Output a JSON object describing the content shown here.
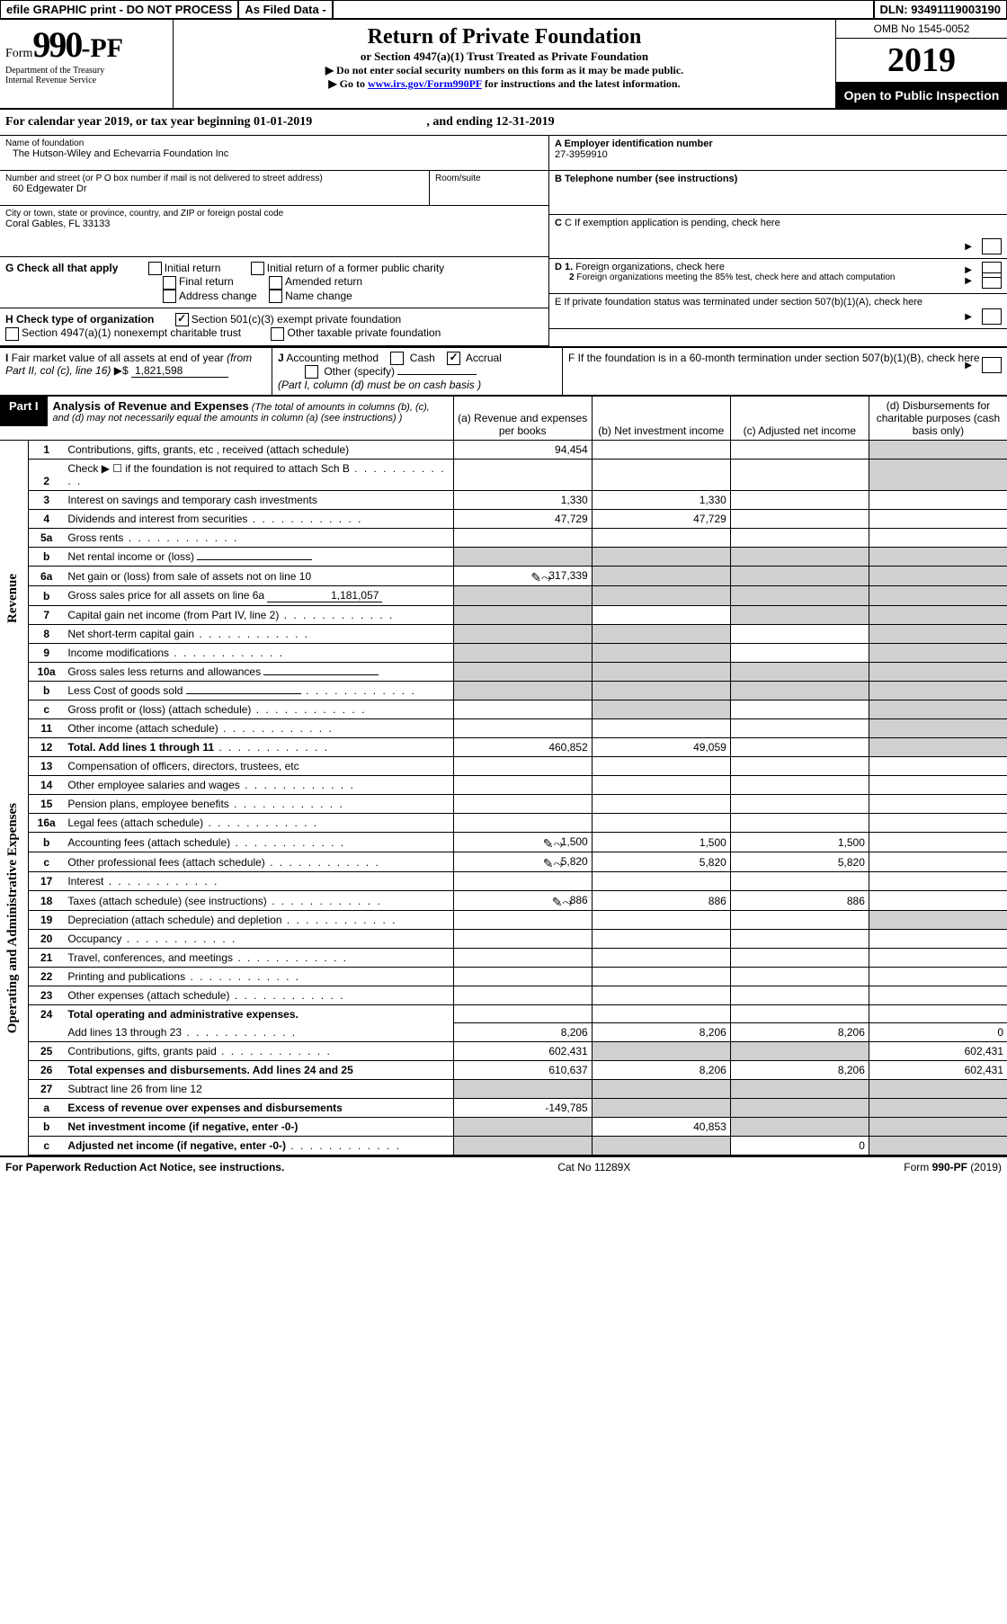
{
  "topbar": {
    "efile": "efile GRAPHIC print - DO NOT PROCESS",
    "asfiled": "As Filed Data -",
    "dln_label": "DLN:",
    "dln": "93491119003190"
  },
  "header": {
    "form_word": "Form",
    "form_num": "990",
    "form_pf": "-PF",
    "dept1": "Department of the Treasury",
    "dept2": "Internal Revenue Service",
    "title": "Return of Private Foundation",
    "subtitle": "or Section 4947(a)(1) Trust Treated as Private Foundation",
    "instr1": "▶ Do not enter social security numbers on this form as it may be made public.",
    "instr2_a": "▶ Go to ",
    "instr2_link": "www.irs.gov/Form990PF",
    "instr2_b": " for instructions and the latest information.",
    "omb": "OMB No  1545-0052",
    "year": "2019",
    "open": "Open to Public Inspection"
  },
  "calyear": {
    "text_a": "For calendar year 2019, or tax year beginning ",
    "begin": "01-01-2019",
    "text_b": ", and ending ",
    "end": "12-31-2019"
  },
  "info": {
    "name_lbl": "Name of foundation",
    "name": "The Hutson-Wiley and Echevarria Foundation Inc",
    "addr_lbl": "Number and street (or P O  box number if mail is not delivered to street address)",
    "room_lbl": "Room/suite",
    "addr": "60 Edgewater Dr",
    "city_lbl": "City or town, state or province, country, and ZIP or foreign postal code",
    "city": "Coral Gables, FL  33133",
    "a_lbl": "A Employer identification number",
    "a_val": "27-3959910",
    "b_lbl": "B Telephone number (see instructions)",
    "c_lbl": "C If exemption application is pending, check here",
    "g_lbl": "G Check all that apply",
    "g_opts": [
      "Initial return",
      "Initial return of a former public charity",
      "Final return",
      "Amended return",
      "Address change",
      "Name change"
    ],
    "h_lbl": "H Check type of organization",
    "h_501": "Section 501(c)(3) exempt private foundation",
    "h_4947": "Section 4947(a)(1) nonexempt charitable trust",
    "h_other": "Other taxable private foundation",
    "i_lbl": "I Fair market value of all assets at end of year (from Part II, col  (c), line 16)  ▶$",
    "i_val": "1,821,598",
    "j_lbl": "J Accounting method",
    "j_cash": "Cash",
    "j_accrual": "Accrual",
    "j_other": "Other (specify)",
    "j_note": "(Part I, column (d) must be on cash basis )",
    "d1": "D 1. Foreign organizations, check here",
    "d2": "2  Foreign organizations meeting the 85% test, check here and attach computation",
    "e_lbl": "E  If private foundation status was terminated under section 507(b)(1)(A), check here",
    "f_lbl": "F  If the foundation is in a 60-month termination under section 507(b)(1)(B), check here"
  },
  "part1": {
    "label": "Part I",
    "title": "Analysis of Revenue and Expenses",
    "note": " (The total of amounts in columns (b), (c), and (d) may not necessarily equal the amounts in column (a) (see instructions) )",
    "cols": {
      "a": "(a)   Revenue and expenses per books",
      "b": "(b)  Net investment income",
      "c": "(c)  Adjusted net income",
      "d": "(d)  Disbursements for charitable purposes (cash basis only)"
    }
  },
  "vlabels": {
    "revenue": "Revenue",
    "expenses": "Operating and Administrative Expenses"
  },
  "rows": [
    {
      "ln": "1",
      "desc": "Contributions, gifts, grants, etc , received (attach schedule)",
      "a": "94,454",
      "grey_d": true
    },
    {
      "ln": "2",
      "desc": "Check ▶ ☐ if the foundation is not required to attach Sch  B",
      "dotfill": true,
      "grey_d": true
    },
    {
      "ln": "3",
      "desc": "Interest on savings and temporary cash investments",
      "a": "1,330",
      "b": "1,330"
    },
    {
      "ln": "4",
      "desc": "Dividends and interest from securities",
      "dotfill": true,
      "a": "47,729",
      "b": "47,729"
    },
    {
      "ln": "5a",
      "desc": "Gross rents",
      "dotfill": true
    },
    {
      "ln": "b",
      "desc": "Net rental income or (loss)",
      "underline": true,
      "grey_abcd": true
    },
    {
      "ln": "6a",
      "desc": "Net gain or (loss) from sale of assets not on line 10",
      "icon": true,
      "a": "317,339",
      "grey_cd": true,
      "grey_b": true
    },
    {
      "ln": "b",
      "desc": "Gross sales price for all assets on line 6a",
      "underline": true,
      "uval": "1,181,057",
      "grey_abcd": true
    },
    {
      "ln": "7",
      "desc": "Capital gain net income (from Part IV, line 2)",
      "dotfill": true,
      "grey_a": true,
      "grey_cd": true
    },
    {
      "ln": "8",
      "desc": "Net short-term capital gain",
      "dotfill": true,
      "grey_a": true,
      "grey_b": true,
      "grey_d": true
    },
    {
      "ln": "9",
      "desc": "Income modifications",
      "dotfill": true,
      "grey_a": true,
      "grey_b": true,
      "grey_d": true
    },
    {
      "ln": "10a",
      "desc": "Gross sales less returns and allowances",
      "underline": true,
      "grey_abcd": true
    },
    {
      "ln": "b",
      "desc": "Less  Cost of goods sold",
      "dotfill": true,
      "underline": true,
      "grey_abcd": true
    },
    {
      "ln": "c",
      "desc": "Gross profit or (loss) (attach schedule)",
      "dotfill": true,
      "grey_b": true,
      "grey_d": true
    },
    {
      "ln": "11",
      "desc": "Other income (attach schedule)",
      "dotfill": true,
      "grey_d": true
    },
    {
      "ln": "12",
      "desc": "Total. Add lines 1 through 11",
      "bold": true,
      "dotfill": true,
      "a": "460,852",
      "b": "49,059",
      "grey_d": true
    }
  ],
  "rows_exp": [
    {
      "ln": "13",
      "desc": "Compensation of officers, directors, trustees, etc"
    },
    {
      "ln": "14",
      "desc": "Other employee salaries and wages",
      "dotfill": true
    },
    {
      "ln": "15",
      "desc": "Pension plans, employee benefits",
      "dotfill": true
    },
    {
      "ln": "16a",
      "desc": "Legal fees (attach schedule)",
      "dotfill": true
    },
    {
      "ln": "b",
      "desc": "Accounting fees (attach schedule)",
      "dotfill": true,
      "icon": true,
      "a": "1,500",
      "b": "1,500",
      "c": "1,500"
    },
    {
      "ln": "c",
      "desc": "Other professional fees (attach schedule)",
      "dotfill": true,
      "icon": true,
      "a": "5,820",
      "b": "5,820",
      "c": "5,820"
    },
    {
      "ln": "17",
      "desc": "Interest",
      "dotfill": true
    },
    {
      "ln": "18",
      "desc": "Taxes (attach schedule) (see instructions)",
      "dotfill": true,
      "icon": true,
      "a": "886",
      "b": "886",
      "c": "886"
    },
    {
      "ln": "19",
      "desc": "Depreciation (attach schedule) and depletion",
      "dotfill": true,
      "grey_d": true
    },
    {
      "ln": "20",
      "desc": "Occupancy",
      "dotfill": true
    },
    {
      "ln": "21",
      "desc": "Travel, conferences, and meetings",
      "dotfill": true
    },
    {
      "ln": "22",
      "desc": "Printing and publications",
      "dotfill": true
    },
    {
      "ln": "23",
      "desc": "Other expenses (attach schedule)",
      "dotfill": true
    },
    {
      "ln": "24",
      "desc": "Total operating and administrative expenses.",
      "bold": true,
      "nb": true
    },
    {
      "ln": "",
      "desc": "Add lines 13 through 23",
      "dotfill": true,
      "a": "8,206",
      "b": "8,206",
      "c": "8,206",
      "d": "0"
    },
    {
      "ln": "25",
      "desc": "Contributions, gifts, grants paid",
      "dotfill": true,
      "a": "602,431",
      "grey_b": true,
      "grey_c": true,
      "d": "602,431"
    },
    {
      "ln": "26",
      "desc": "Total expenses and disbursements. Add lines 24 and 25",
      "bold": true,
      "a": "610,637",
      "b": "8,206",
      "c": "8,206",
      "d": "602,431"
    }
  ],
  "rows_bottom": [
    {
      "ln": "27",
      "desc": "Subtract line 26 from line 12",
      "grey_all": true
    },
    {
      "ln": "a",
      "desc": "Excess of revenue over expenses and disbursements",
      "bold": true,
      "a": "-149,785",
      "grey_bcd": true
    },
    {
      "ln": "b",
      "desc": "Net investment income (if negative, enter -0-)",
      "bold": true,
      "grey_a": true,
      "b": "40,853",
      "grey_cd": true
    },
    {
      "ln": "c",
      "desc": "Adjusted net income (if negative, enter -0-)",
      "bold": true,
      "dotfill": true,
      "grey_a": true,
      "grey_b": true,
      "c": "0",
      "grey_d": true
    }
  ],
  "footer": {
    "left": "For Paperwork Reduction Act Notice, see instructions.",
    "center": "Cat  No  11289X",
    "right": "Form 990-PF (2019)"
  }
}
